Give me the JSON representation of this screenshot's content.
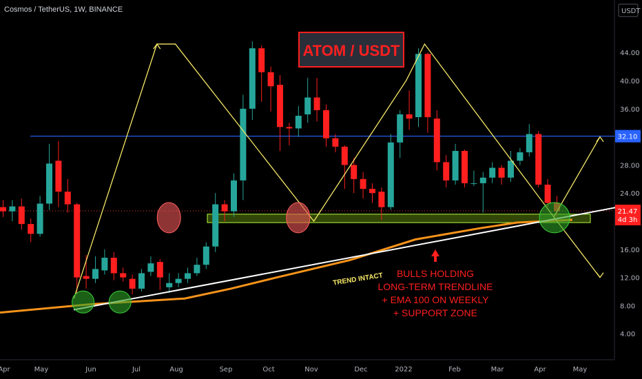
{
  "header": {
    "symbol_line": "Cosmos / TetherUS, 1W, BINANCE",
    "currency": "USDT"
  },
  "colors": {
    "up": "#26a69a",
    "down": "#ff1f1f",
    "ema": "#f7931a",
    "resistance": "#2962ff",
    "zigzag": "#f7e868",
    "annotation": "#ff1f1f",
    "support_zone": "#b6ff3b"
  },
  "chart_data": {
    "type": "candlestick",
    "title": "ATOM / USDT",
    "y_axis": {
      "min": 2,
      "max": 48,
      "ticks": [
        4,
        8,
        12,
        16,
        20,
        24,
        28,
        32,
        36,
        40,
        44
      ]
    },
    "x_labels": [
      "Apr",
      "May",
      "Jun",
      "Jul",
      "Aug",
      "Sep",
      "Oct",
      "Nov",
      "Dec",
      "2022",
      "Feb",
      "Mar",
      "Apr",
      "May"
    ],
    "candles": [
      [
        22.0,
        21.4,
        23.0,
        20.6
      ],
      [
        21.4,
        22.1,
        23.0,
        20.0
      ],
      [
        22.1,
        19.6,
        23.2,
        18.8
      ],
      [
        19.6,
        18.2,
        20.4,
        17.0
      ],
      [
        18.2,
        22.5,
        23.6,
        17.8
      ],
      [
        22.5,
        28.2,
        31.0,
        21.6
      ],
      [
        28.6,
        24.2,
        31.4,
        22.0
      ],
      [
        24.2,
        22.4,
        26.0,
        21.2
      ],
      [
        22.4,
        12.0,
        22.6,
        9.6
      ],
      [
        12.2,
        11.8,
        15.2,
        10.4
      ],
      [
        11.8,
        13.2,
        15.0,
        11.2
      ],
      [
        13.0,
        14.8,
        16.0,
        12.4
      ],
      [
        14.8,
        12.6,
        15.6,
        11.6
      ],
      [
        12.6,
        12.0,
        13.4,
        11.4
      ],
      [
        11.8,
        10.4,
        12.4,
        9.6
      ],
      [
        10.4,
        12.6,
        13.2,
        10.0
      ],
      [
        12.8,
        14.0,
        15.0,
        12.2
      ],
      [
        14.2,
        12.0,
        14.6,
        10.2
      ],
      [
        10.6,
        11.2,
        12.6,
        9.8
      ],
      [
        11.2,
        11.8,
        12.6,
        10.6
      ],
      [
        11.8,
        12.6,
        13.4,
        11.2
      ],
      [
        12.6,
        13.8,
        14.8,
        12.2
      ],
      [
        13.8,
        16.4,
        17.0,
        13.2
      ],
      [
        16.4,
        22.4,
        24.0,
        15.6
      ],
      [
        22.4,
        21.4,
        23.0,
        20.0
      ],
      [
        21.4,
        25.8,
        26.8,
        20.6
      ],
      [
        25.8,
        36.0,
        38.0,
        23.0
      ],
      [
        36.0,
        44.6,
        45.6,
        34.4
      ],
      [
        44.6,
        41.2,
        45.0,
        37.0
      ],
      [
        41.2,
        39.2,
        42.0,
        35.6
      ],
      [
        39.4,
        33.4,
        40.8,
        30.0
      ],
      [
        33.4,
        33.2,
        34.0,
        30.8
      ],
      [
        33.2,
        35.0,
        36.4,
        32.0
      ],
      [
        35.2,
        37.6,
        40.4,
        34.0
      ],
      [
        37.6,
        35.8,
        40.4,
        34.2
      ],
      [
        35.8,
        31.8,
        36.6,
        30.6
      ],
      [
        31.8,
        30.6,
        32.4,
        29.8
      ],
      [
        30.6,
        28.0,
        30.8,
        24.6
      ],
      [
        28.0,
        26.0,
        29.0,
        24.0
      ],
      [
        26.0,
        24.6,
        27.0,
        23.2
      ],
      [
        24.6,
        24.0,
        25.4,
        22.6
      ],
      [
        24.2,
        22.0,
        24.8,
        20.2
      ],
      [
        22.0,
        31.2,
        32.4,
        21.6
      ],
      [
        31.2,
        35.2,
        35.8,
        29.0
      ],
      [
        35.2,
        34.6,
        38.6,
        33.0
      ],
      [
        34.8,
        43.8,
        44.6,
        33.4
      ],
      [
        43.8,
        34.8,
        44.0,
        32.6
      ],
      [
        34.6,
        28.4,
        35.8,
        27.2
      ],
      [
        28.4,
        25.8,
        29.4,
        24.8
      ],
      [
        25.8,
        30.0,
        31.0,
        25.2
      ],
      [
        30.0,
        25.4,
        30.2,
        24.8
      ],
      [
        25.4,
        25.4,
        27.2,
        25.0
      ],
      [
        25.4,
        26.2,
        27.0,
        21.2
      ],
      [
        26.2,
        27.6,
        28.4,
        25.4
      ],
      [
        27.6,
        26.2,
        28.0,
        25.2
      ],
      [
        26.2,
        28.6,
        30.0,
        25.6
      ],
      [
        28.6,
        29.8,
        30.4,
        28.0
      ],
      [
        29.8,
        32.4,
        33.8,
        29.2
      ],
      [
        32.4,
        25.2,
        32.8,
        24.8
      ],
      [
        25.2,
        22.6,
        26.0,
        22.0
      ],
      [
        22.6,
        21.4,
        23.6,
        20.6
      ]
    ],
    "ema100": [
      [
        0,
        7.0
      ],
      [
        10,
        8.2
      ],
      [
        20,
        9.0
      ],
      [
        25,
        10.4
      ],
      [
        30,
        12.0
      ],
      [
        38,
        14.5
      ],
      [
        45,
        17.4
      ],
      [
        52,
        19.0
      ],
      [
        56,
        19.8
      ],
      [
        62,
        20.2
      ]
    ],
    "resistance_level": 32.1,
    "current_price": 21.47,
    "countdown": "4d 3h",
    "support_zone": [
      19.8,
      21.0
    ],
    "trendline": [
      [
        8,
        7.4
      ],
      [
        62,
        21.4
      ]
    ],
    "zigzag": [
      [
        8,
        9.0
      ],
      [
        17,
        45.2
      ],
      [
        19,
        45.2
      ],
      [
        34,
        20.0
      ],
      [
        44,
        40.0
      ],
      [
        46,
        45.2
      ],
      [
        60,
        20.6
      ],
      [
        65,
        32.0
      ]
    ],
    "zigzag_down": [
      [
        60,
        20.6
      ],
      [
        65,
        12.0
      ]
    ],
    "circles_green": [
      [
        9,
        8.5
      ],
      [
        13,
        8.5
      ],
      [
        60,
        20.5
      ]
    ],
    "circles_red": [
      [
        18,
        20.5
      ],
      [
        32,
        20.5
      ]
    ],
    "annotations": {
      "trend_intact": "TREND INTACT",
      "bulls_lines": [
        "BULLS HOLDING",
        "LONG-TERM TRENDLINE",
        "+ EMA 100 ON WEEKLY",
        "+ SUPPORT ZONE"
      ]
    },
    "price_labels": {
      "resistance": "32.10",
      "current": "21.47",
      "countdown": "4d 3h"
    }
  }
}
